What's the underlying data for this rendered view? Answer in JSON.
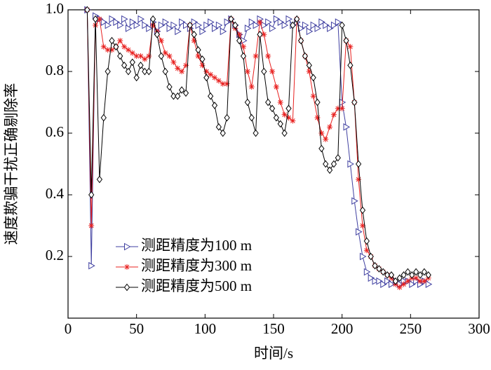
{
  "chart_data": {
    "type": "line",
    "xlabel": "时间/s",
    "ylabel": "速度欺骗干扰正确剔除率",
    "x": [
      14,
      17,
      20,
      23,
      26,
      29,
      32,
      35,
      38,
      41,
      44,
      47,
      50,
      53,
      56,
      59,
      62,
      65,
      68,
      71,
      74,
      77,
      80,
      83,
      86,
      89,
      92,
      95,
      98,
      101,
      104,
      107,
      110,
      113,
      116,
      119,
      122,
      125,
      128,
      131,
      134,
      137,
      140,
      143,
      146,
      149,
      152,
      155,
      158,
      161,
      164,
      167,
      170,
      173,
      176,
      179,
      182,
      185,
      188,
      191,
      194,
      197,
      200,
      203,
      206,
      209,
      212,
      215,
      218,
      221,
      224,
      227,
      230,
      233,
      236,
      239,
      242,
      245,
      248,
      251,
      254,
      257,
      260,
      263
    ],
    "series": [
      {
        "name": "测距精度为100 m",
        "color": "#3f3fa0",
        "marker": "triangle-right",
        "values": [
          1.0,
          0.17,
          0.98,
          0.97,
          0.96,
          0.95,
          0.97,
          0.96,
          0.95,
          0.97,
          0.94,
          0.96,
          0.95,
          0.97,
          0.95,
          0.94,
          0.96,
          0.93,
          0.95,
          0.96,
          0.94,
          0.95,
          0.93,
          0.96,
          0.95,
          0.94,
          0.96,
          0.95,
          0.93,
          0.95,
          0.96,
          0.94,
          0.95,
          0.93,
          0.96,
          0.97,
          0.95,
          0.92,
          0.9,
          0.94,
          0.96,
          0.95,
          0.97,
          0.95,
          0.96,
          0.94,
          0.97,
          0.96,
          0.95,
          0.97,
          0.95,
          0.96,
          0.94,
          0.95,
          0.93,
          0.95,
          0.94,
          0.96,
          0.95,
          0.94,
          0.95,
          0.96,
          0.7,
          0.62,
          0.5,
          0.38,
          0.28,
          0.2,
          0.15,
          0.13,
          0.12,
          0.12,
          0.11,
          0.12,
          0.11,
          0.12,
          0.11,
          0.12,
          0.12,
          0.11,
          0.12,
          0.11,
          0.12,
          0.11
        ]
      },
      {
        "name": "测距精度为300 m",
        "color": "#e8201f",
        "marker": "asterisk",
        "values": [
          1.0,
          0.3,
          0.95,
          0.97,
          0.88,
          0.87,
          0.87,
          0.88,
          0.9,
          0.88,
          0.87,
          0.86,
          0.85,
          0.85,
          0.84,
          0.85,
          0.95,
          0.93,
          0.9,
          0.86,
          0.85,
          0.83,
          0.81,
          0.8,
          0.82,
          0.95,
          0.9,
          0.85,
          0.82,
          0.8,
          0.79,
          0.78,
          0.77,
          0.76,
          0.76,
          0.97,
          0.94,
          0.92,
          0.88,
          0.8,
          0.75,
          0.85,
          0.96,
          0.92,
          0.85,
          0.8,
          0.75,
          0.7,
          0.66,
          0.65,
          0.64,
          0.97,
          0.9,
          0.85,
          0.8,
          0.72,
          0.65,
          0.6,
          0.58,
          0.62,
          0.66,
          0.68,
          0.68,
          0.9,
          0.88,
          0.7,
          0.45,
          0.3,
          0.22,
          0.2,
          0.17,
          0.16,
          0.15,
          0.14,
          0.13,
          0.11,
          0.1,
          0.11,
          0.12,
          0.13,
          0.13,
          0.12,
          0.12,
          0.13
        ]
      },
      {
        "name": "测距精度为500 m",
        "color": "#000000",
        "marker": "diamond",
        "values": [
          1.0,
          0.4,
          0.97,
          0.45,
          0.65,
          0.8,
          0.9,
          0.88,
          0.85,
          0.82,
          0.8,
          0.83,
          0.78,
          0.82,
          0.8,
          0.8,
          0.97,
          0.92,
          0.85,
          0.8,
          0.75,
          0.72,
          0.72,
          0.74,
          0.73,
          0.95,
          0.92,
          0.87,
          0.84,
          0.78,
          0.72,
          0.69,
          0.62,
          0.6,
          0.65,
          0.97,
          0.95,
          0.9,
          0.85,
          0.7,
          0.65,
          0.6,
          0.92,
          0.8,
          0.7,
          0.68,
          0.65,
          0.63,
          0.6,
          0.68,
          0.95,
          0.97,
          0.9,
          0.85,
          0.82,
          0.78,
          0.7,
          0.55,
          0.5,
          0.48,
          0.5,
          0.52,
          0.95,
          0.9,
          0.82,
          0.7,
          0.5,
          0.35,
          0.25,
          0.2,
          0.17,
          0.16,
          0.15,
          0.14,
          0.14,
          0.12,
          0.13,
          0.14,
          0.15,
          0.14,
          0.15,
          0.14,
          0.15,
          0.14
        ]
      }
    ],
    "xlim": [
      0,
      300
    ],
    "xticks": [
      0,
      50,
      100,
      150,
      200,
      250,
      300
    ],
    "ylim": [
      0,
      1
    ],
    "yticks": [
      0.2,
      0.4,
      0.6,
      0.8,
      {
        "value": 1,
        "label": "1.0"
      }
    ],
    "legend": "lower left"
  }
}
